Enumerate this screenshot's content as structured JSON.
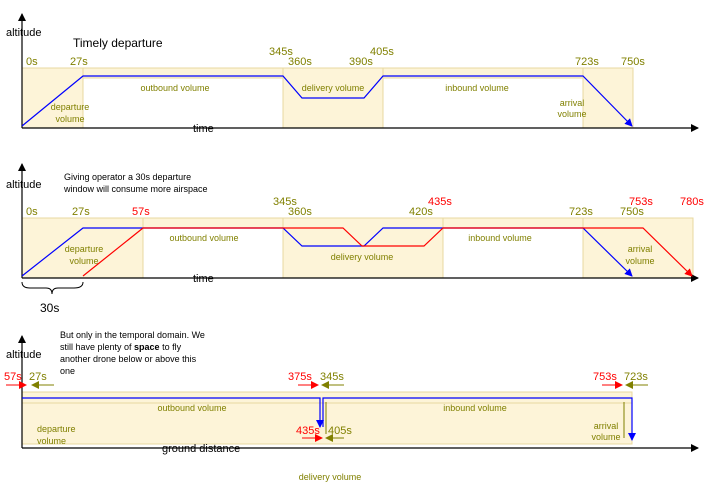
{
  "panel1": {
    "axis_y_label": "altitude",
    "axis_x_label": "time",
    "heading": "Timely departure",
    "times": [
      "0s",
      "27s",
      "345s",
      "360s",
      "390s",
      "405s",
      "723s",
      "750s"
    ],
    "volumes": {
      "departure": "departure\nvolume",
      "outbound": "outbound volume",
      "delivery": "delivery volume",
      "inbound": "inbound volume",
      "arrival": "arrival\nvolume"
    }
  },
  "panel2": {
    "axis_y_label": "altitude",
    "axis_x_label": "time",
    "note": "Giving operator a 30s departure\nwindow will consume more airspace",
    "times_olive": [
      "0s",
      "27s",
      "345s",
      "360s",
      "420s",
      "723s",
      "750s"
    ],
    "times_red": [
      "57s",
      "435s",
      "753s",
      "780s"
    ],
    "window_label": "30s",
    "volumes": {
      "departure": "departure\nvolume",
      "outbound": "outbound volume",
      "delivery": "delivery volume",
      "inbound": "inbound volume",
      "arrival": "arrival\nvolume"
    }
  },
  "panel3": {
    "axis_y_label": "altitude",
    "axis_x_label": "ground distance",
    "note_pre": "But only in the temporal domain. We\nstill have plenty of ",
    "note_bold": "space",
    "note_post": " to fly\nanother drone below or above this\none",
    "times_red": [
      "57s",
      "375s",
      "435s",
      "753s"
    ],
    "times_olive": [
      "27s",
      "345s",
      "405s",
      "723s"
    ],
    "volumes": {
      "departure": "departure\nvolume",
      "outbound": "outbound volume",
      "inbound": "inbound volume",
      "arrival": "arrival\nvolume",
      "delivery": "delivery volume"
    }
  },
  "colors": {
    "olive": "#808000",
    "red": "#ff0000",
    "blue": "#0000ff",
    "volume_fill": "#fdf4d8"
  }
}
